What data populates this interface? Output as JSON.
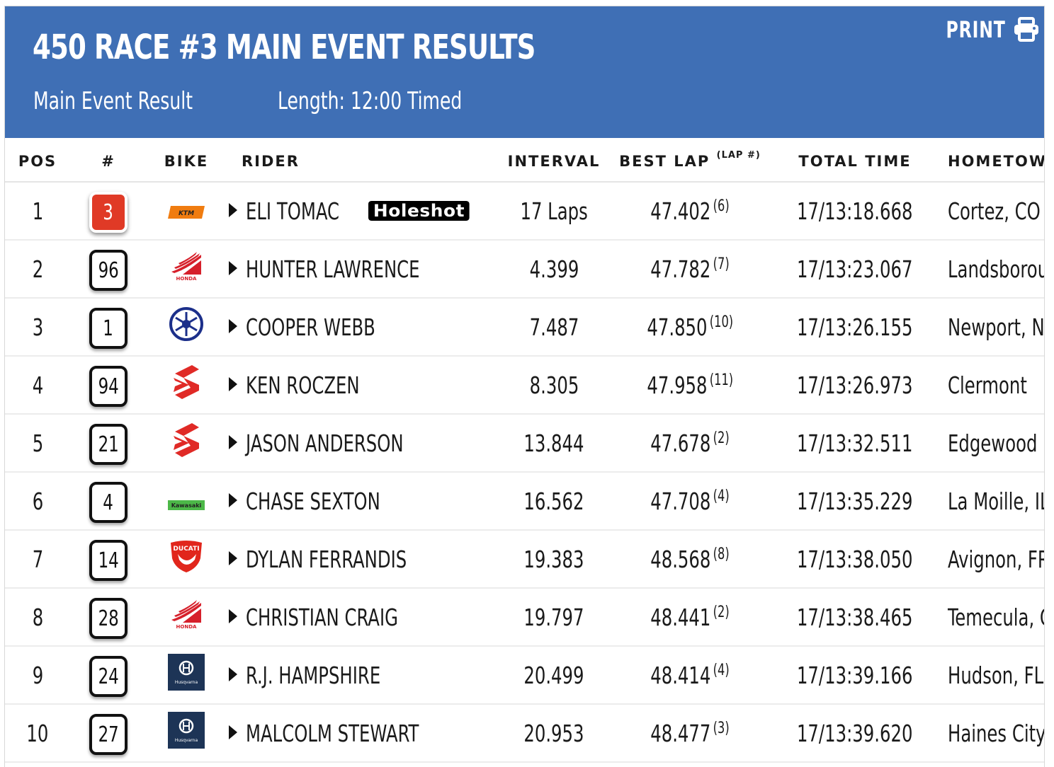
{
  "header": {
    "title": "450 RACE #3 MAIN EVENT RESULTS",
    "event_type": "Main Event Result",
    "length": "Length: 12:00 Timed",
    "print_label": "PRINT"
  },
  "columns": {
    "pos": "POS",
    "num": "#",
    "bike": "BIKE",
    "rider": "RIDER",
    "interval": "INTERVAL",
    "best_lap": "BEST LAP",
    "best_lap_sup": "(LAP #)",
    "total_time": "TOTAL TIME",
    "hometown": "HOMETOWN"
  },
  "colors": {
    "header_bg": "#3f6fb5",
    "leader_plate": "#e03a26"
  },
  "rows": [
    {
      "pos": "1",
      "num": "3",
      "bike": "ktm-logo",
      "rider": "ELI TOMAC",
      "badge": "Holeshot",
      "interval": "17 Laps",
      "best_lap": "47.402",
      "lap_num": "(6)",
      "total": "17/13:18.668",
      "hometown": "Cortez, CO"
    },
    {
      "pos": "2",
      "num": "96",
      "bike": "honda-logo",
      "rider": "HUNTER LAWRENCE",
      "interval": "4.399",
      "best_lap": "47.782",
      "lap_num": "(7)",
      "total": "17/13:23.067",
      "hometown": "Landsborough"
    },
    {
      "pos": "3",
      "num": "1",
      "bike": "yamaha-logo",
      "rider": "COOPER WEBB",
      "interval": "7.487",
      "best_lap": "47.850",
      "lap_num": "(10)",
      "total": "17/13:26.155",
      "hometown": "Newport, NC"
    },
    {
      "pos": "4",
      "num": "94",
      "bike": "suzuki-logo",
      "rider": "KEN ROCZEN",
      "interval": "8.305",
      "best_lap": "47.958",
      "lap_num": "(11)",
      "total": "17/13:26.973",
      "hometown": "Clermont"
    },
    {
      "pos": "5",
      "num": "21",
      "bike": "suzuki-logo",
      "rider": "JASON ANDERSON",
      "interval": "13.844",
      "best_lap": "47.678",
      "lap_num": "(2)",
      "total": "17/13:32.511",
      "hometown": "Edgewood"
    },
    {
      "pos": "6",
      "num": "4",
      "bike": "kawasaki-logo",
      "rider": "CHASE SEXTON",
      "interval": "16.562",
      "best_lap": "47.708",
      "lap_num": "(4)",
      "total": "17/13:35.229",
      "hometown": "La Moille, IL"
    },
    {
      "pos": "7",
      "num": "14",
      "bike": "ducati-logo",
      "rider": "DYLAN FERRANDIS",
      "interval": "19.383",
      "best_lap": "48.568",
      "lap_num": "(8)",
      "total": "17/13:38.050",
      "hometown": "Avignon, FR"
    },
    {
      "pos": "8",
      "num": "28",
      "bike": "honda-logo",
      "rider": "CHRISTIAN CRAIG",
      "interval": "19.797",
      "best_lap": "48.441",
      "lap_num": "(2)",
      "total": "17/13:38.465",
      "hometown": "Temecula, CA"
    },
    {
      "pos": "9",
      "num": "24",
      "bike": "husqvarna-logo",
      "rider": "R.J. HAMPSHIRE",
      "interval": "20.499",
      "best_lap": "48.414",
      "lap_num": "(4)",
      "total": "17/13:39.166",
      "hometown": "Hudson, FL"
    },
    {
      "pos": "10",
      "num": "27",
      "bike": "husqvarna-logo",
      "rider": "MALCOLM STEWART",
      "interval": "20.953",
      "best_lap": "48.477",
      "lap_num": "(3)",
      "total": "17/13:39.620",
      "hometown": "Haines City, FL"
    }
  ]
}
